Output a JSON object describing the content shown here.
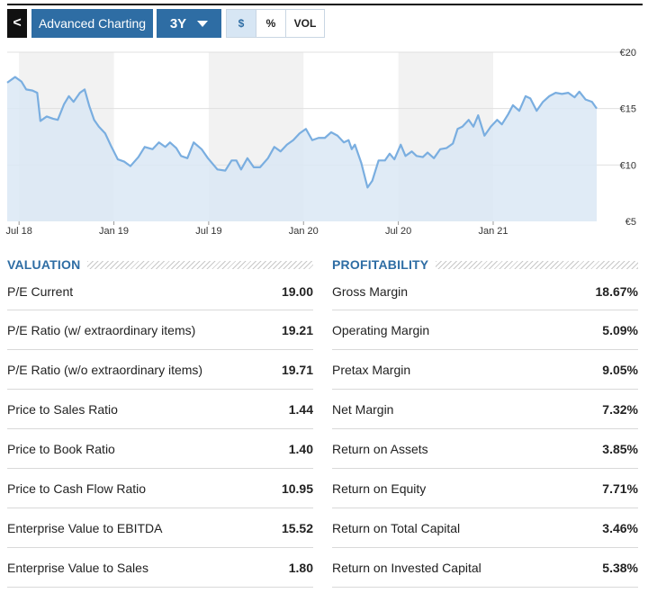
{
  "toolbar": {
    "back_glyph": "<",
    "advanced_label": "Advanced Charting",
    "range_label": "3Y",
    "options": [
      {
        "label": "$",
        "active": true
      },
      {
        "label": "%",
        "active": false
      },
      {
        "label": "VOL",
        "active": false
      }
    ]
  },
  "chart_data": {
    "type": "area",
    "x_tick_labels": [
      "Jul 18",
      "Jan 19",
      "Jul 19",
      "Jan 20",
      "Jul 20",
      "Jan 21"
    ],
    "y_tick_labels": [
      "€20",
      "€15",
      "€10",
      "€5"
    ],
    "y_ticks": [
      20,
      15,
      10,
      5
    ],
    "ylim": [
      5,
      20
    ],
    "x_axis": "months since Jun 2018",
    "xlim": [
      0,
      36
    ],
    "grid": true,
    "series_color": "#7aaee0",
    "fill_color": "#dbe7f5",
    "points": [
      [
        0.0,
        17.3
      ],
      [
        0.5,
        17.8
      ],
      [
        0.9,
        17.4
      ],
      [
        1.2,
        16.7
      ],
      [
        1.6,
        16.6
      ],
      [
        1.9,
        16.4
      ],
      [
        2.1,
        13.9
      ],
      [
        2.5,
        14.3
      ],
      [
        2.9,
        14.1
      ],
      [
        3.2,
        14.0
      ],
      [
        3.6,
        15.4
      ],
      [
        3.9,
        16.1
      ],
      [
        4.2,
        15.6
      ],
      [
        4.6,
        16.4
      ],
      [
        4.9,
        16.7
      ],
      [
        5.2,
        15.2
      ],
      [
        5.5,
        14.0
      ],
      [
        5.8,
        13.4
      ],
      [
        6.2,
        12.8
      ],
      [
        6.6,
        11.6
      ],
      [
        7.0,
        10.5
      ],
      [
        7.4,
        10.3
      ],
      [
        7.8,
        9.9
      ],
      [
        8.3,
        10.7
      ],
      [
        8.7,
        11.6
      ],
      [
        9.2,
        11.4
      ],
      [
        9.6,
        12.0
      ],
      [
        10.0,
        11.6
      ],
      [
        10.3,
        12.0
      ],
      [
        10.7,
        11.5
      ],
      [
        11.0,
        10.8
      ],
      [
        11.4,
        10.6
      ],
      [
        11.8,
        12.0
      ],
      [
        12.3,
        11.4
      ],
      [
        12.7,
        10.6
      ],
      [
        13.3,
        9.6
      ],
      [
        13.8,
        9.5
      ],
      [
        14.2,
        10.4
      ],
      [
        14.5,
        10.4
      ],
      [
        14.8,
        9.6
      ],
      [
        15.2,
        10.6
      ],
      [
        15.6,
        9.8
      ],
      [
        16.0,
        9.8
      ],
      [
        16.5,
        10.6
      ],
      [
        16.9,
        11.6
      ],
      [
        17.3,
        11.2
      ],
      [
        17.7,
        11.8
      ],
      [
        18.1,
        12.2
      ],
      [
        18.5,
        12.8
      ],
      [
        18.9,
        13.2
      ],
      [
        19.3,
        12.2
      ],
      [
        19.7,
        12.4
      ],
      [
        20.1,
        12.4
      ],
      [
        20.5,
        12.9
      ],
      [
        20.9,
        12.6
      ],
      [
        21.3,
        12.0
      ],
      [
        21.6,
        12.2
      ],
      [
        21.8,
        11.4
      ],
      [
        22.0,
        11.8
      ],
      [
        22.4,
        10.2
      ],
      [
        22.8,
        8.0
      ],
      [
        23.1,
        8.6
      ],
      [
        23.5,
        10.4
      ],
      [
        23.9,
        10.4
      ],
      [
        24.2,
        11.0
      ],
      [
        24.5,
        10.5
      ],
      [
        24.9,
        11.8
      ],
      [
        25.2,
        10.8
      ],
      [
        25.6,
        11.2
      ],
      [
        25.9,
        10.8
      ],
      [
        26.3,
        10.7
      ],
      [
        26.6,
        11.1
      ],
      [
        27.0,
        10.6
      ],
      [
        27.4,
        11.4
      ],
      [
        27.8,
        11.5
      ],
      [
        28.2,
        11.9
      ],
      [
        28.5,
        13.2
      ],
      [
        28.8,
        13.4
      ],
      [
        29.2,
        14.0
      ],
      [
        29.5,
        13.4
      ],
      [
        29.8,
        14.4
      ],
      [
        30.2,
        12.6
      ],
      [
        30.6,
        13.4
      ],
      [
        31.0,
        14.0
      ],
      [
        31.3,
        13.6
      ],
      [
        31.7,
        14.5
      ],
      [
        32.0,
        15.3
      ],
      [
        32.4,
        14.8
      ],
      [
        32.8,
        16.1
      ],
      [
        33.1,
        15.9
      ],
      [
        33.5,
        14.8
      ],
      [
        33.9,
        15.6
      ],
      [
        34.3,
        16.1
      ],
      [
        34.7,
        16.4
      ],
      [
        35.1,
        16.3
      ],
      [
        35.5,
        16.4
      ],
      [
        35.9,
        16.0
      ],
      [
        36.2,
        16.5
      ],
      [
        36.6,
        15.8
      ],
      [
        37.0,
        15.6
      ],
      [
        37.3,
        15.0
      ]
    ],
    "shaded_bands": [
      [
        0.75,
        6.75
      ],
      [
        12.75,
        18.75
      ],
      [
        24.75,
        30.75
      ]
    ]
  },
  "valuation": {
    "title": "VALUATION",
    "rows": [
      {
        "label": "P/E Current",
        "value": "19.00"
      },
      {
        "label": "P/E Ratio (w/ extraordinary items)",
        "value": "19.21"
      },
      {
        "label": "P/E Ratio (w/o extraordinary items)",
        "value": "19.71"
      },
      {
        "label": "Price to Sales Ratio",
        "value": "1.44"
      },
      {
        "label": "Price to Book Ratio",
        "value": "1.40"
      },
      {
        "label": "Price to Cash Flow Ratio",
        "value": "10.95"
      },
      {
        "label": "Enterprise Value to EBITDA",
        "value": "15.52"
      },
      {
        "label": "Enterprise Value to Sales",
        "value": "1.80"
      }
    ]
  },
  "profitability": {
    "title": "PROFITABILITY",
    "rows": [
      {
        "label": "Gross Margin",
        "value": "18.67%"
      },
      {
        "label": "Operating Margin",
        "value": "5.09%"
      },
      {
        "label": "Pretax Margin",
        "value": "9.05%"
      },
      {
        "label": "Net Margin",
        "value": "7.32%"
      },
      {
        "label": "Return on Assets",
        "value": "3.85%"
      },
      {
        "label": "Return on Equity",
        "value": "7.71%"
      },
      {
        "label": "Return on Total Capital",
        "value": "3.46%"
      },
      {
        "label": "Return on Invested Capital",
        "value": "5.38%"
      }
    ]
  }
}
